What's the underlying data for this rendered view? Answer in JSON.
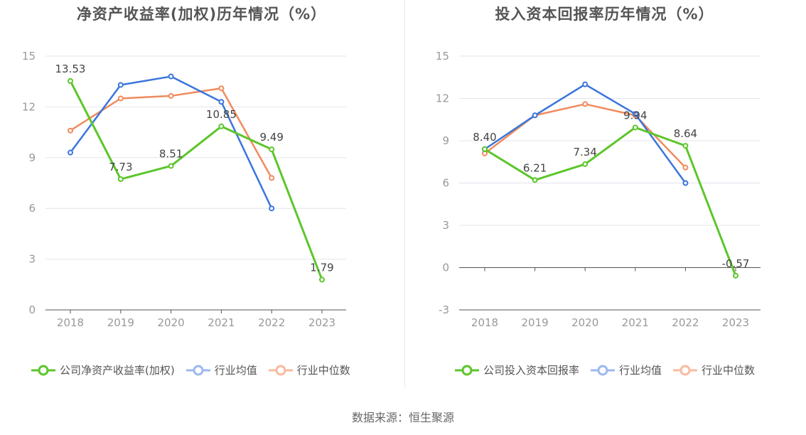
{
  "source": "数据来源：恒生聚源",
  "colors": {
    "company": "#5cc62b",
    "avg": "#3a75dc",
    "median": "#f08a5d",
    "grid": "#e4e4ee",
    "axis": "#888888",
    "text": "#999999"
  },
  "chart_data": [
    {
      "type": "line",
      "title": "净资产收益率(加权)历年情况（%）",
      "categories": [
        "2018",
        "2019",
        "2020",
        "2021",
        "2022",
        "2023"
      ],
      "ylim": [
        0,
        15
      ],
      "yticks": [
        0,
        3,
        6,
        9,
        12,
        15
      ],
      "grid": true,
      "legend_position": "bottom",
      "series": [
        {
          "name": "公司净资产收益率(加权)",
          "values": [
            13.53,
            7.73,
            8.51,
            10.85,
            9.49,
            1.79
          ],
          "labels": [
            "13.53",
            "7.73",
            "8.51",
            "10.85",
            "9.49",
            "1.79"
          ]
        },
        {
          "name": "行业均值",
          "values": [
            9.3,
            13.3,
            13.8,
            12.3,
            6.0,
            null
          ]
        },
        {
          "name": "行业中位数",
          "values": [
            10.6,
            12.5,
            12.65,
            13.1,
            7.8,
            null
          ]
        }
      ]
    },
    {
      "type": "line",
      "title": "投入资本回报率历年情况（%）",
      "categories": [
        "2018",
        "2019",
        "2020",
        "2021",
        "2022",
        "2023"
      ],
      "ylim": [
        -3,
        15
      ],
      "yticks": [
        -3,
        0,
        3,
        6,
        9,
        12,
        15
      ],
      "grid": true,
      "legend_position": "bottom",
      "series": [
        {
          "name": "公司投入资本回报率",
          "values": [
            8.4,
            6.21,
            7.34,
            9.94,
            8.64,
            -0.57
          ],
          "labels": [
            "8.40",
            "6.21",
            "7.34",
            "9.94",
            "8.64",
            "-0.57"
          ]
        },
        {
          "name": "行业均值",
          "values": [
            8.4,
            10.8,
            13.0,
            10.9,
            6.0,
            null
          ]
        },
        {
          "name": "行业中位数",
          "values": [
            8.1,
            10.8,
            11.6,
            10.8,
            7.1,
            null
          ]
        }
      ]
    }
  ]
}
